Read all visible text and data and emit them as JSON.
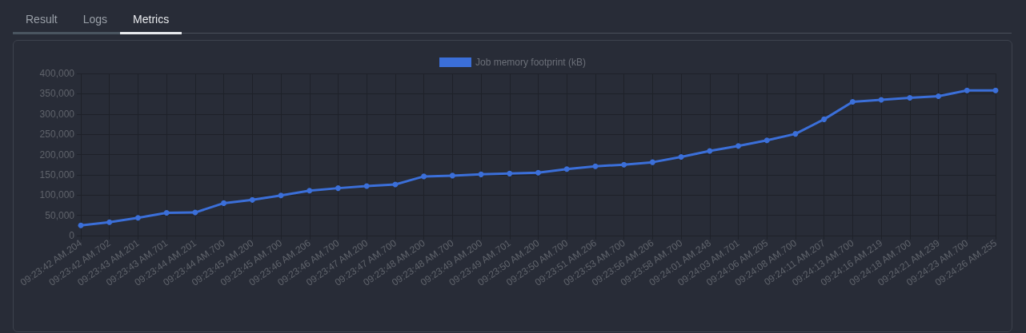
{
  "chart_data": {
    "type": "line",
    "annotations": [
      "Result",
      "Logs",
      "Metrics"
    ],
    "categories": [
      "09:23:42 AM.204",
      "09:23:42 AM.702",
      "09:23:43 AM.201",
      "09:23:43 AM.701",
      "09:23:44 AM.201",
      "09:23:44 AM.700",
      "09:23:45 AM.200",
      "09:23:45 AM.700",
      "09:23:46 AM.206",
      "09:23:46 AM.700",
      "09:23:47 AM.200",
      "09:23:47 AM.700",
      "09:23:48 AM.200",
      "09:23:48 AM.700",
      "09:23:49 AM.200",
      "09:23:49 AM.701",
      "09:23:50 AM.200",
      "09:23:50 AM.700",
      "09:23:51 AM.206",
      "09:23:53 AM.700",
      "09:23:56 AM.206",
      "09:23:58 AM.700",
      "09:24:01 AM.248",
      "09:24:03 AM.701",
      "09:24:06 AM.205",
      "09:24:08 AM.700",
      "09:24:11 AM.207",
      "09:24:13 AM.700",
      "09:24:16 AM.219",
      "09:24:18 AM.700",
      "09:24:21 AM.239",
      "09:24:23 AM.700",
      "09:24:26 AM.255"
    ],
    "series": [
      {
        "name": "Job memory footprint (kB)",
        "color": "#3b6fd9",
        "values": [
          25000,
          33000,
          44000,
          56000,
          57000,
          80000,
          88000,
          99000,
          111000,
          117000,
          122000,
          126000,
          146000,
          148000,
          151000,
          153000,
          155000,
          164000,
          171000,
          175000,
          181000,
          194000,
          209000,
          221000,
          235000,
          251000,
          287000,
          330000,
          335000,
          340000,
          344000,
          358000,
          358000
        ]
      }
    ],
    "ylim": [
      0,
      400000
    ],
    "yticks": [
      {
        "value": 0,
        "label": "0"
      },
      {
        "value": 50000,
        "label": "50,000"
      },
      {
        "value": 100000,
        "label": "100,000"
      },
      {
        "value": 150000,
        "label": "150,000"
      },
      {
        "value": 200000,
        "label": "200,000"
      },
      {
        "value": 250000,
        "label": "250,000"
      },
      {
        "value": 300000,
        "label": "300,000"
      },
      {
        "value": 350000,
        "label": "350,000"
      },
      {
        "value": 400000,
        "label": "400,000"
      }
    ],
    "grid": true,
    "legend": "top",
    "marker": "circle",
    "line_style": "solid"
  }
}
